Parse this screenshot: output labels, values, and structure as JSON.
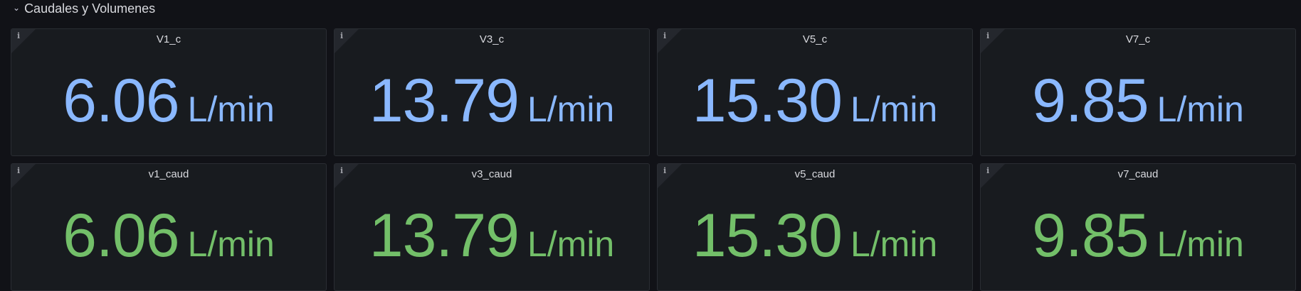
{
  "row": {
    "title": "Caudales y Volumenes",
    "collapse_icon": "chevron-down-icon"
  },
  "colors": {
    "blue": "#8ab8ff",
    "green": "#73bf69"
  },
  "panels": [
    {
      "title": "V1_c",
      "value": "6.06",
      "unit": "L/min",
      "color": "#8ab8ff"
    },
    {
      "title": "V3_c",
      "value": "13.79",
      "unit": "L/min",
      "color": "#8ab8ff"
    },
    {
      "title": "V5_c",
      "value": "15.30",
      "unit": "L/min",
      "color": "#8ab8ff"
    },
    {
      "title": "V7_c",
      "value": "9.85",
      "unit": "L/min",
      "color": "#8ab8ff"
    },
    {
      "title": "v1_caud",
      "value": "6.06",
      "unit": "L/min",
      "color": "#73bf69"
    },
    {
      "title": "v3_caud",
      "value": "13.79",
      "unit": "L/min",
      "color": "#73bf69"
    },
    {
      "title": "v5_caud",
      "value": "15.30",
      "unit": "L/min",
      "color": "#73bf69"
    },
    {
      "title": "v7_caud",
      "value": "9.85",
      "unit": "L/min",
      "color": "#73bf69"
    }
  ],
  "info_glyph": "i"
}
